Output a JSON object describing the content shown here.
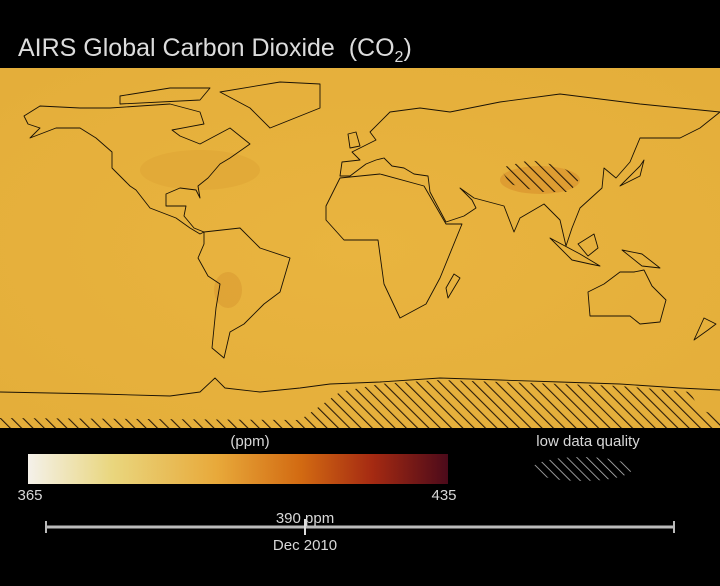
{
  "header": {
    "title": "AIRS Global Carbon Dioxide  (CO",
    "title_subscript": "2",
    "title_end": ")"
  },
  "colorbar": {
    "unit": "(ppm)",
    "min": 365,
    "max": 435
  },
  "legend": {
    "hatch_label": "low data quality"
  },
  "slider": {
    "value_label": "390 ppm",
    "date": "Dec 2010"
  }
}
